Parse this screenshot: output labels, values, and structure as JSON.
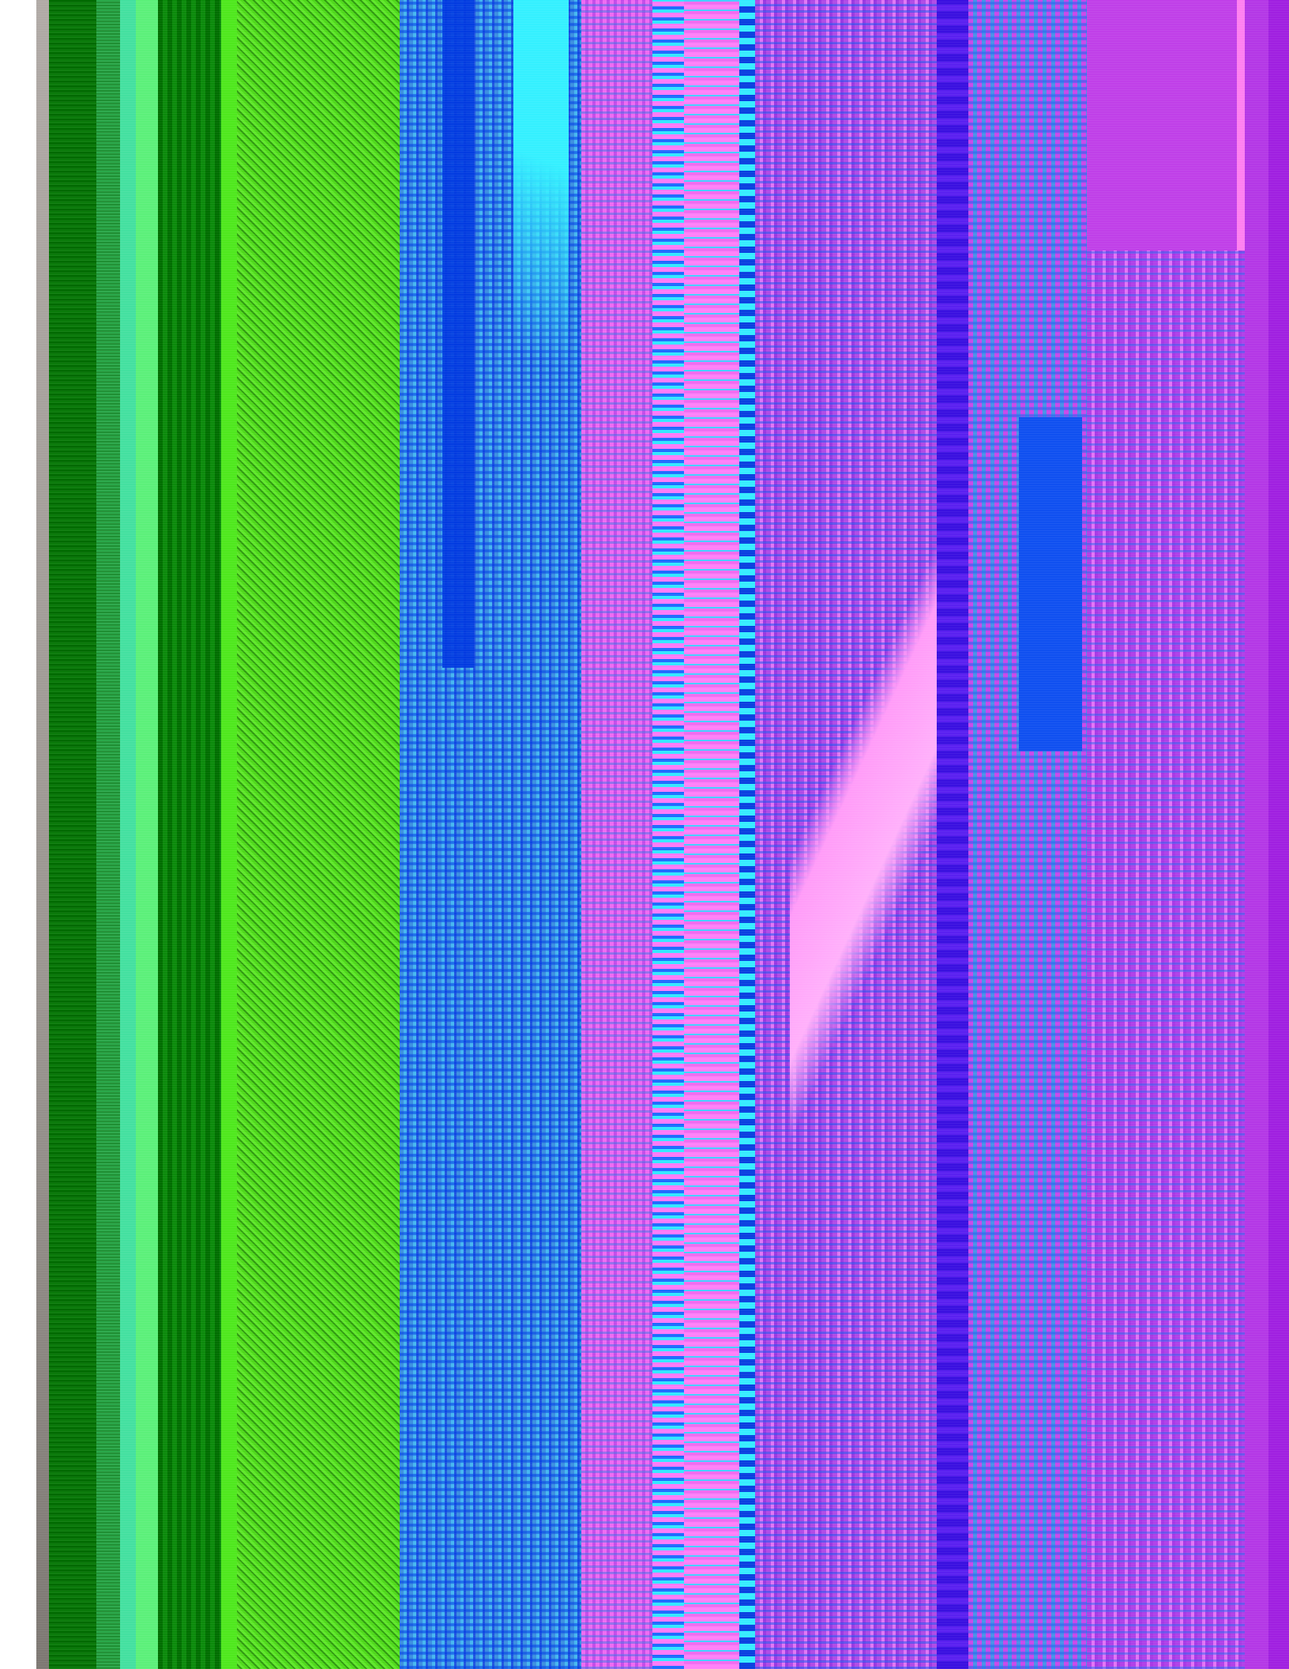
{
  "image": {
    "description_kind": "abstract",
    "colors": {
      "green": "#4ed81a",
      "dark_green": "#006e00",
      "cyan": "#35f0ff",
      "blue": "#1f55e0",
      "pink": "#ff80f8",
      "magenta": "#c44ce8",
      "violet": "#3a10e0",
      "purple": "#a020e0",
      "grey_edge": "#9a9590"
    }
  }
}
